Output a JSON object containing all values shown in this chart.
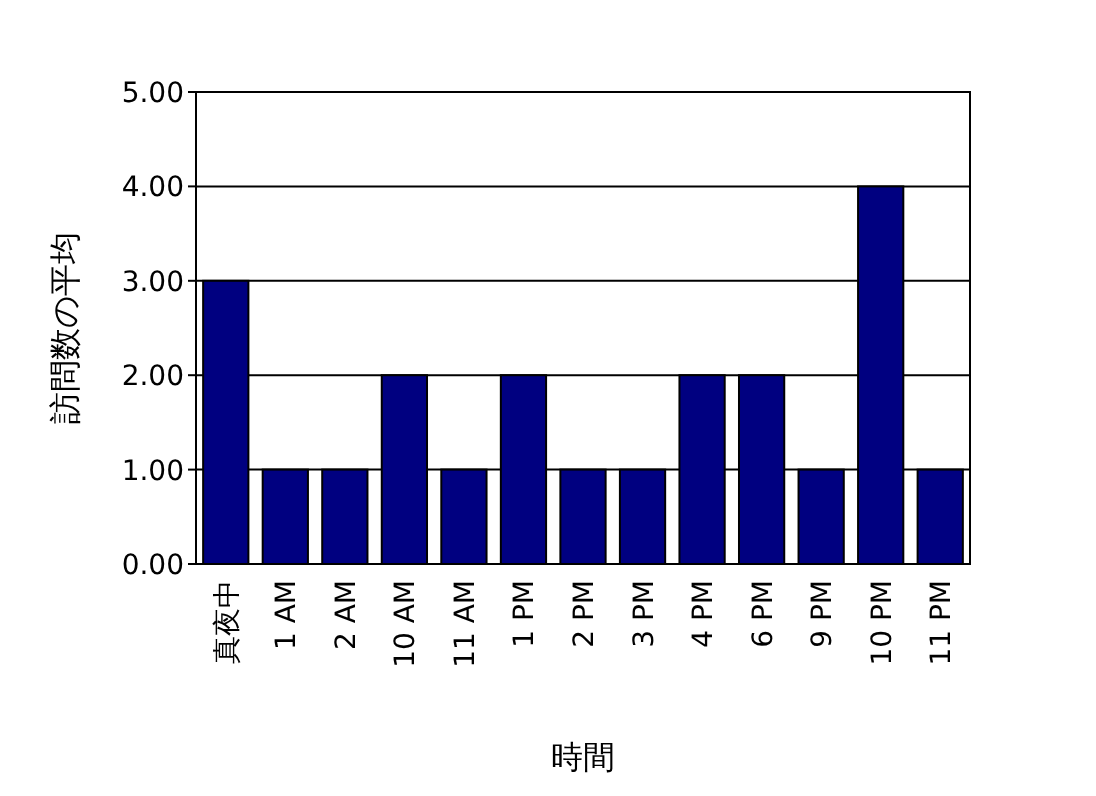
{
  "chart_data": {
    "type": "bar",
    "xlabel": "時間",
    "ylabel": "訪問数の平均",
    "categories": [
      "真夜中",
      "1 AM",
      "2 AM",
      "10 AM",
      "11 AM",
      "1 PM",
      "2 PM",
      "3 PM",
      "4 PM",
      "6 PM",
      "9 PM",
      "10 PM",
      "11 PM"
    ],
    "values": [
      3,
      1,
      1,
      2,
      1,
      2,
      1,
      1,
      2,
      2,
      1,
      4,
      1
    ],
    "color": "#000080",
    "ylim": [
      0,
      5
    ],
    "yticks": [
      {
        "value": 0,
        "label": "0.00"
      },
      {
        "value": 1,
        "label": "1.00"
      },
      {
        "value": 2,
        "label": "2.00"
      },
      {
        "value": 3,
        "label": "3.00"
      },
      {
        "value": 4,
        "label": "4.00"
      },
      {
        "value": 5,
        "label": "5.00"
      }
    ],
    "grid": "y"
  }
}
